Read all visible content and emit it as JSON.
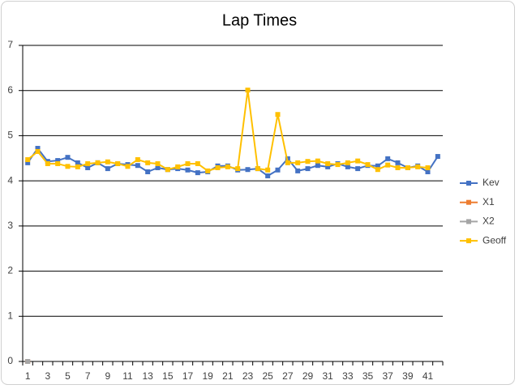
{
  "chart_data": {
    "type": "line",
    "title": "Lap Times",
    "categories": [
      1,
      null,
      3,
      null,
      5,
      null,
      7,
      null,
      9,
      null,
      11,
      null,
      13,
      null,
      15,
      null,
      17,
      null,
      19,
      null,
      21,
      null,
      23,
      null,
      25,
      null,
      27,
      null,
      29,
      null,
      31,
      null,
      33,
      null,
      35,
      null,
      37,
      null,
      39,
      null,
      41,
      null
    ],
    "series": [
      {
        "name": "Kev",
        "color": "#4472c4",
        "values": [
          4.4,
          4.72,
          4.43,
          4.45,
          4.52,
          4.4,
          4.29,
          4.4,
          4.27,
          4.38,
          4.36,
          4.34,
          4.2,
          4.29,
          4.25,
          4.27,
          4.24,
          4.18,
          4.2,
          4.33,
          4.33,
          4.24,
          4.25,
          4.27,
          4.11,
          4.24,
          4.49,
          4.22,
          4.27,
          4.34,
          4.31,
          4.38,
          4.31,
          4.27,
          4.34,
          4.33,
          4.49,
          4.4,
          4.29,
          4.33,
          4.2,
          4.54
        ]
      },
      {
        "name": "X1",
        "color": "#ed7d31",
        "values": [
          0,
          null,
          null,
          null,
          null,
          null,
          null,
          null,
          null,
          null,
          null,
          null,
          null,
          null,
          null,
          null,
          null,
          null,
          null,
          null,
          null,
          null,
          null,
          null,
          null,
          null,
          null,
          null,
          null,
          null,
          null,
          null,
          null,
          null,
          null,
          null,
          null,
          null,
          null,
          null,
          null,
          null
        ]
      },
      {
        "name": "X2",
        "color": "#a5a5a5",
        "values": [
          0,
          null,
          null,
          null,
          null,
          null,
          null,
          null,
          null,
          null,
          null,
          null,
          null,
          null,
          null,
          null,
          null,
          null,
          null,
          null,
          null,
          null,
          null,
          null,
          null,
          null,
          null,
          null,
          null,
          null,
          null,
          null,
          null,
          null,
          null,
          null,
          null,
          null,
          null,
          null,
          null,
          null
        ]
      },
      {
        "name": "Geoff",
        "color": "#ffc000",
        "values": [
          4.47,
          4.65,
          4.38,
          4.38,
          4.32,
          4.31,
          4.38,
          4.4,
          4.42,
          4.38,
          4.32,
          4.47,
          4.4,
          4.38,
          4.25,
          4.31,
          4.38,
          4.38,
          4.22,
          4.29,
          4.31,
          4.27,
          6.01,
          4.27,
          4.24,
          5.47,
          4.4,
          4.4,
          4.43,
          4.44,
          4.38,
          4.36,
          4.4,
          4.44,
          4.36,
          4.25,
          4.35,
          4.29,
          4.29,
          4.31,
          4.29,
          null
        ]
      }
    ],
    "ylim": [
      0,
      7
    ],
    "yticks": [
      0,
      1,
      2,
      3,
      4,
      5,
      6,
      7
    ],
    "grid": true,
    "legend": "right"
  }
}
